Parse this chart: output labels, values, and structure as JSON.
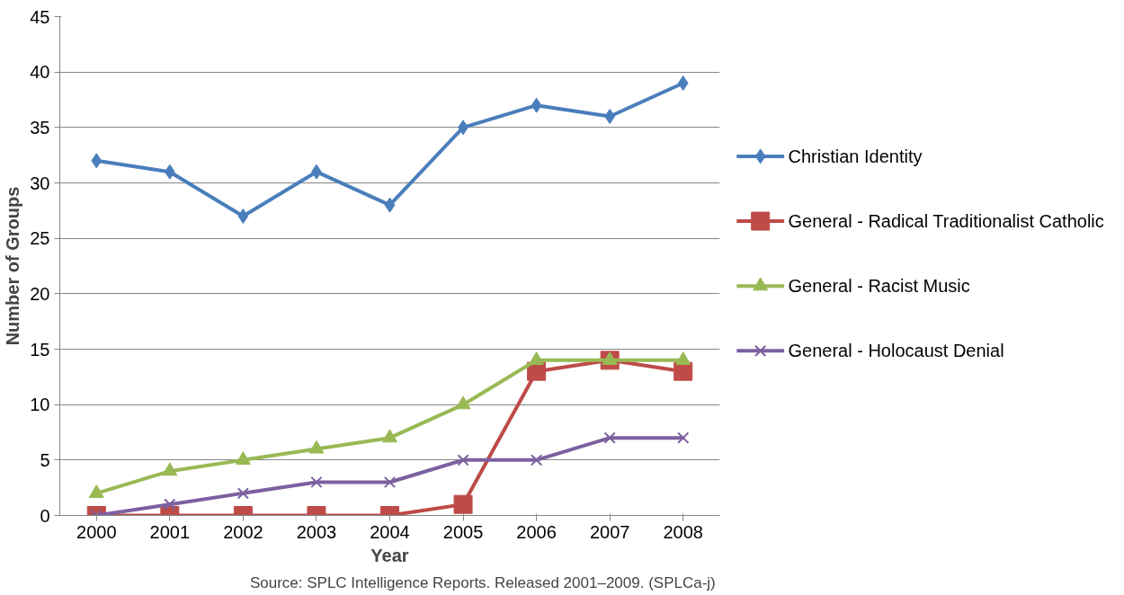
{
  "chart_data": {
    "type": "line",
    "xlabel": "Year",
    "ylabel": "Number of Groups",
    "categories": [
      "2000",
      "2001",
      "2002",
      "2003",
      "2004",
      "2005",
      "2006",
      "2007",
      "2008"
    ],
    "series": [
      {
        "name": "Christian Identity",
        "color": "#4a7ebb",
        "marker": "diamond",
        "values": [
          32,
          31,
          27,
          31,
          28,
          35,
          37,
          36,
          39
        ]
      },
      {
        "name": "General - Radical Traditionalist Catholic",
        "color": "#be4b48",
        "marker": "square",
        "values": [
          0,
          0,
          0,
          0,
          0,
          1,
          13,
          14,
          13
        ]
      },
      {
        "name": "General - Racist Music",
        "color": "#98b954",
        "marker": "triangle",
        "values": [
          2,
          4,
          5,
          6,
          7,
          10,
          14,
          14,
          14
        ]
      },
      {
        "name": "General - Holocaust Denial",
        "color": "#7d60a0",
        "marker": "cross",
        "values": [
          0,
          1,
          2,
          3,
          3,
          5,
          5,
          7,
          7
        ]
      }
    ],
    "ylim": [
      0,
      45
    ],
    "yticks": [
      0,
      5,
      10,
      15,
      20,
      25,
      30,
      35,
      40,
      45
    ],
    "grid": "y",
    "legend": "right",
    "annotations": [
      "Source: SPLC Intelligence Reports. Released 2001–2009.  (SPLCa-j)"
    ]
  }
}
